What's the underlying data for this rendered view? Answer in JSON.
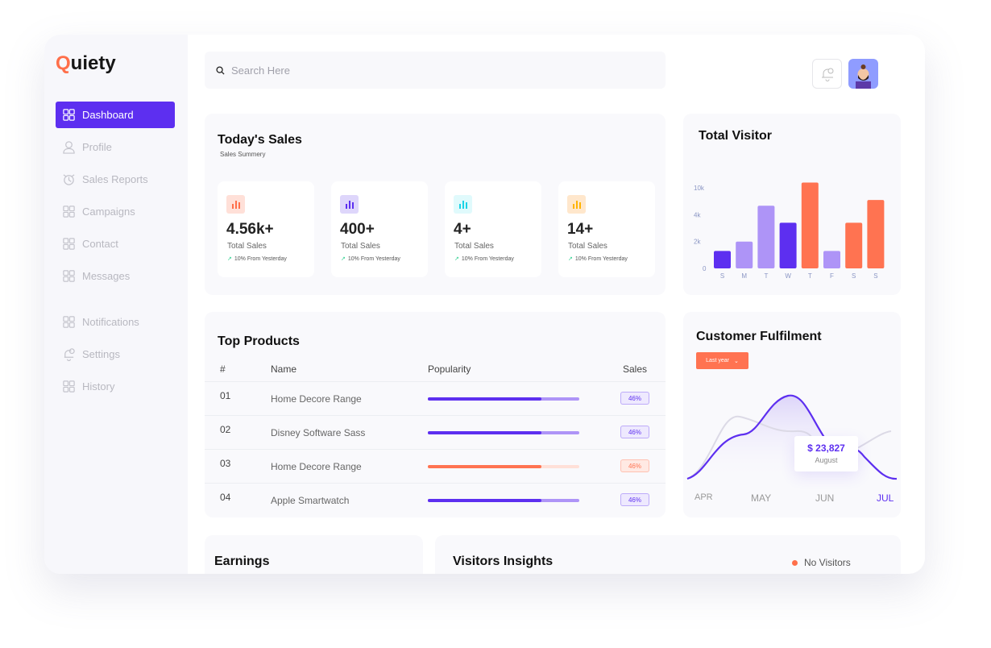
{
  "brand": {
    "name_rest": "uiety",
    "name_first": "Q"
  },
  "sidebar": {
    "items": [
      {
        "label": "Dashboard",
        "icon": "grid-icon",
        "active": true
      },
      {
        "label": "Profile",
        "icon": "user-icon"
      },
      {
        "label": "Sales Reports",
        "icon": "chart-clock-icon"
      },
      {
        "label": "Campaigns",
        "icon": "grid-icon"
      },
      {
        "label": "Contact",
        "icon": "grid-icon"
      },
      {
        "label": "Messages",
        "icon": "grid-icon"
      },
      {
        "label": "Notifications",
        "icon": "grid-icon"
      },
      {
        "label": "Settings",
        "icon": "bell-icon"
      },
      {
        "label": "History",
        "icon": "grid-icon"
      }
    ]
  },
  "header": {
    "search_placeholder": "Search Here"
  },
  "todays_sales": {
    "title": "Today's Sales",
    "subtitle": "Sales Summery",
    "stats": [
      {
        "value": "4.56k+",
        "label": "Total Sales",
        "change": "10% From Yesterday",
        "color": "#ff6f4a",
        "bg": "#ffe0d8"
      },
      {
        "value": "400+",
        "label": "Total Sales",
        "change": "10% From Yesterday",
        "color": "#5d2ff0",
        "bg": "#ded6fb"
      },
      {
        "value": "4+",
        "label": "Total Sales",
        "change": "10% From Yesterday",
        "color": "#19d3e6",
        "bg": "#e0fafc"
      },
      {
        "value": "14+",
        "label": "Total Sales",
        "change": "10% From Yesterday",
        "color": "#ffb400",
        "bg": "#ffe7cc"
      }
    ]
  },
  "chart_data": {
    "type": "bar",
    "title": "Total Visitor",
    "categories": [
      "S",
      "M",
      "T",
      "W",
      "T",
      "F",
      "S",
      "S"
    ],
    "values": [
      1300,
      2000,
      6000,
      3400,
      11200,
      1300,
      3400,
      7300
    ],
    "colors": [
      "#5d2ff0",
      "#ae94f7",
      "#ae94f7",
      "#5d2ff0",
      "#ff7351",
      "#ae94f7",
      "#ff7351",
      "#ff7351"
    ],
    "yticks": [
      "0",
      "2k",
      "4k",
      "10k"
    ],
    "ytick_values": [
      0,
      2000,
      4000,
      10000
    ],
    "grid": false
  },
  "top_products": {
    "title": "Top Products",
    "columns": [
      "#",
      "Name",
      "Popularity",
      "Sales"
    ],
    "rows": [
      {
        "n": "01",
        "name": "Home Decore Range",
        "popularity": 0.75,
        "sales": "46%",
        "color": "#5d2ff0",
        "track": "#ae94f7",
        "badge_bg": "#eee9fe"
      },
      {
        "n": "02",
        "name": "Disney Software Sass",
        "popularity": 0.75,
        "sales": "46%",
        "color": "#5d2ff0",
        "track": "#ae94f7",
        "badge_bg": "#eee9fe"
      },
      {
        "n": "03",
        "name": "Home Decore Range",
        "popularity": 0.75,
        "sales": "46%",
        "color": "#ff7351",
        "track": "#ffe0d8",
        "badge_bg": "#ffe9e3"
      },
      {
        "n": "04",
        "name": "Apple Smartwatch",
        "popularity": 0.75,
        "sales": "46%",
        "color": "#5d2ff0",
        "track": "#ae94f7",
        "badge_bg": "#eee9fe"
      }
    ]
  },
  "fulfilment": {
    "title": "Customer Fulfilment",
    "filter": "Last year",
    "tooltip_value": "$ 23,827",
    "tooltip_label": "August",
    "months": [
      "APR",
      "MAY",
      "JUN",
      "JUL"
    ]
  },
  "earnings": {
    "title": "Earnings"
  },
  "visitors_insights": {
    "title": "Visitors Insights",
    "legend": "No Visitors",
    "legend_color": "#ff6f4a"
  }
}
